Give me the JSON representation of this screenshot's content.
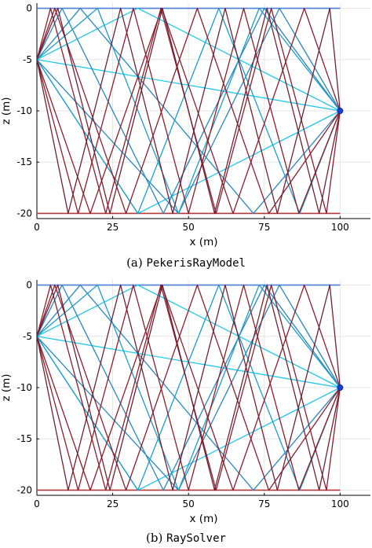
{
  "chart_data": [
    {
      "type": "line",
      "id": "a",
      "caption_tag": "(a)",
      "caption_name": "PekerisRayModel",
      "xlabel": "x (m)",
      "ylabel": "z (m)",
      "xlim": [
        0,
        110
      ],
      "ylim": [
        -20.5,
        0.5
      ],
      "xticks": [
        0,
        25,
        50,
        75,
        100
      ],
      "yticks": [
        0,
        -5,
        -10,
        -15,
        -20
      ],
      "grid": true,
      "source": [
        0,
        -5
      ],
      "receiver": [
        100,
        -10
      ],
      "surface": {
        "x": [
          0,
          100
        ],
        "y": [
          0,
          0
        ],
        "color": "#4a7fdc"
      },
      "bottom": {
        "x": [
          0,
          100
        ],
        "y": [
          -20,
          -20
        ],
        "color": "#b03a3a"
      },
      "series": [
        {
          "color": "#1fc7ea",
          "x": [
            0,
            100
          ],
          "y": [
            -5,
            -10
          ]
        },
        {
          "color": "#1fc7ea",
          "x": [
            0,
            33.3,
            100
          ],
          "y": [
            -5,
            0,
            -10
          ]
        },
        {
          "color": "#1fc7ea",
          "x": [
            0,
            33.3,
            100
          ],
          "y": [
            -5,
            -20,
            -10
          ]
        },
        {
          "color": "#2a86bb",
          "x": [
            0,
            14.3,
            71.4,
            100
          ],
          "y": [
            -5,
            0,
            -20,
            -10
          ]
        },
        {
          "color": "#2a86bb",
          "x": [
            0,
            46.7,
            80,
            100
          ],
          "y": [
            -5,
            -20,
            0,
            -10
          ]
        },
        {
          "color": "#2a86bb",
          "x": [
            0,
            8.3,
            41.7,
            75,
            100
          ],
          "y": [
            -5,
            0,
            -20,
            0,
            -10
          ]
        },
        {
          "color": "#1f9cc8",
          "x": [
            0,
            33.3,
            60,
            86.7,
            100
          ],
          "y": [
            -5,
            -20,
            0,
            -20,
            -10
          ]
        },
        {
          "color": "#1f9cc8",
          "x": [
            0,
            20,
            46.7,
            73.3,
            100
          ],
          "y": [
            -5,
            0,
            -20,
            0,
            -10
          ]
        },
        {
          "color": "#8a1f2d",
          "x": [
            0,
            5.9,
            29.4,
            52.9,
            76.5,
            100
          ],
          "y": [
            -5,
            0,
            -20,
            0,
            -20,
            -10
          ]
        },
        {
          "color": "#8a1f2d",
          "x": [
            0,
            17.6,
            41.2,
            64.7,
            88.2,
            100
          ],
          "y": [
            -5,
            -20,
            0,
            -20,
            0,
            -10
          ]
        },
        {
          "color": "#8a1f2d",
          "x": [
            0,
            4.5,
            22.7,
            40.9,
            59.1,
            77.3,
            95.5,
            100
          ],
          "y": [
            -5,
            0,
            -20,
            0,
            -20,
            0,
            -20,
            -10
          ]
        },
        {
          "color": "#8a1f2d",
          "x": [
            0,
            13.6,
            31.8,
            50,
            68.2,
            86.4,
            100
          ],
          "y": [
            -5,
            -20,
            0,
            -20,
            0,
            -20,
            -10
          ]
        },
        {
          "color": "#6d2233",
          "x": [
            0,
            6.9,
            24.1,
            41.4,
            58.6,
            75.9,
            93.1,
            100
          ],
          "y": [
            -5,
            0,
            -20,
            0,
            -20,
            0,
            -20,
            -10
          ]
        },
        {
          "color": "#6d2233",
          "x": [
            0,
            10.3,
            27.6,
            44.8,
            62.1,
            79.3,
            96.6,
            100
          ],
          "y": [
            -5,
            -20,
            0,
            -20,
            0,
            -20,
            0,
            -10
          ]
        }
      ]
    },
    {
      "type": "line",
      "id": "b",
      "caption_tag": "(b)",
      "caption_name": "RaySolver",
      "xlabel": "x (m)",
      "ylabel": "z (m)",
      "xlim": [
        0,
        110
      ],
      "ylim": [
        -20.5,
        0.5
      ],
      "xticks": [
        0,
        25,
        50,
        75,
        100
      ],
      "yticks": [
        0,
        -5,
        -10,
        -15,
        -20
      ],
      "grid": true,
      "source": [
        0,
        -5
      ],
      "receiver": [
        100,
        -10
      ],
      "surface": {
        "x": [
          0,
          100
        ],
        "y": [
          0,
          0
        ],
        "color": "#4a7fdc"
      },
      "bottom": {
        "x": [
          0,
          100
        ],
        "y": [
          -20,
          -20
        ],
        "color": "#b03a3a"
      },
      "series": [
        {
          "color": "#1fc7ea",
          "x": [
            0,
            100
          ],
          "y": [
            -5,
            -10
          ]
        },
        {
          "color": "#1fc7ea",
          "x": [
            0,
            33.3,
            100
          ],
          "y": [
            -5,
            0,
            -10
          ]
        },
        {
          "color": "#1fc7ea",
          "x": [
            0,
            33.3,
            100
          ],
          "y": [
            -5,
            -20,
            -10
          ]
        },
        {
          "color": "#2a86bb",
          "x": [
            0,
            14.3,
            71.4,
            100
          ],
          "y": [
            -5,
            0,
            -20,
            -10
          ]
        },
        {
          "color": "#2a86bb",
          "x": [
            0,
            46.7,
            80,
            100
          ],
          "y": [
            -5,
            -20,
            0,
            -10
          ]
        },
        {
          "color": "#2a86bb",
          "x": [
            0,
            8.3,
            41.7,
            75,
            100
          ],
          "y": [
            -5,
            0,
            -20,
            0,
            -10
          ]
        },
        {
          "color": "#1f9cc8",
          "x": [
            0,
            33.3,
            60,
            86.7,
            100
          ],
          "y": [
            -5,
            -20,
            0,
            -20,
            -10
          ]
        },
        {
          "color": "#1f9cc8",
          "x": [
            0,
            20,
            46.7,
            73.3,
            100
          ],
          "y": [
            -5,
            0,
            -20,
            0,
            -10
          ]
        },
        {
          "color": "#8a1f2d",
          "x": [
            0,
            5.9,
            29.4,
            52.9,
            76.5,
            100
          ],
          "y": [
            -5,
            0,
            -20,
            0,
            -20,
            -10
          ]
        },
        {
          "color": "#8a1f2d",
          "x": [
            0,
            17.6,
            41.2,
            64.7,
            88.2,
            100
          ],
          "y": [
            -5,
            -20,
            0,
            -20,
            0,
            -10
          ]
        },
        {
          "color": "#8a1f2d",
          "x": [
            0,
            4.5,
            22.7,
            40.9,
            59.1,
            77.3,
            95.5,
            100
          ],
          "y": [
            -5,
            0,
            -20,
            0,
            -20,
            0,
            -20,
            -10
          ]
        },
        {
          "color": "#8a1f2d",
          "x": [
            0,
            13.6,
            31.8,
            50,
            68.2,
            86.4,
            100
          ],
          "y": [
            -5,
            -20,
            0,
            -20,
            0,
            -20,
            -10
          ]
        },
        {
          "color": "#6d2233",
          "x": [
            0,
            6.9,
            24.1,
            41.4,
            58.6,
            75.9,
            93.1,
            100
          ],
          "y": [
            -5,
            0,
            -20,
            0,
            -20,
            0,
            -20,
            -10
          ]
        },
        {
          "color": "#6d2233",
          "x": [
            0,
            10.3,
            27.6,
            44.8,
            62.1,
            79.3,
            96.6,
            100
          ],
          "y": [
            -5,
            -20,
            0,
            -20,
            0,
            -20,
            0,
            -10
          ]
        }
      ]
    }
  ]
}
